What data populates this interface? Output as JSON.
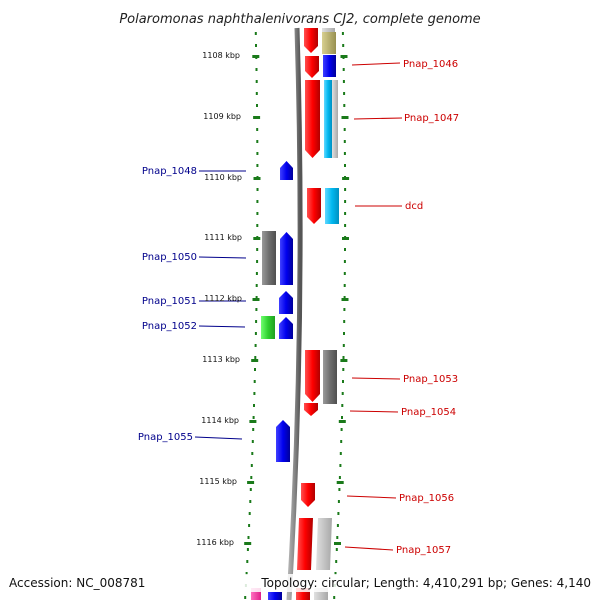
{
  "title": "Polaromonas naphthalenivorans CJ2, complete genome",
  "footer": {
    "accession": "Accession: NC_008781",
    "summary": "Topology: circular; Length: 4,410,291 bp; Genes: 4,140"
  },
  "kbp_labels": [
    "1108 kbp",
    "1109 kbp",
    "1110 kbp",
    "1111 kbp",
    "1112 kbp",
    "1113 kbp",
    "1114 kbp",
    "1115 kbp",
    "1116 kbp"
  ],
  "genes_left": [
    "Pnap_1048",
    "Pnap_1050",
    "Pnap_1051",
    "Pnap_1052",
    "Pnap_1055"
  ],
  "genes_right": [
    "Pnap_1046",
    "Pnap_1047",
    "dcd",
    "Pnap_1053",
    "Pnap_1054",
    "Pnap_1056",
    "Pnap_1057"
  ],
  "colors": {
    "forward_strand": "#ff0000",
    "reverse_strand": "#0000ee",
    "label_left": "#00008b",
    "label_right": "#cc0000",
    "tick": "#1a7a1a",
    "backbone": "#888888"
  }
}
